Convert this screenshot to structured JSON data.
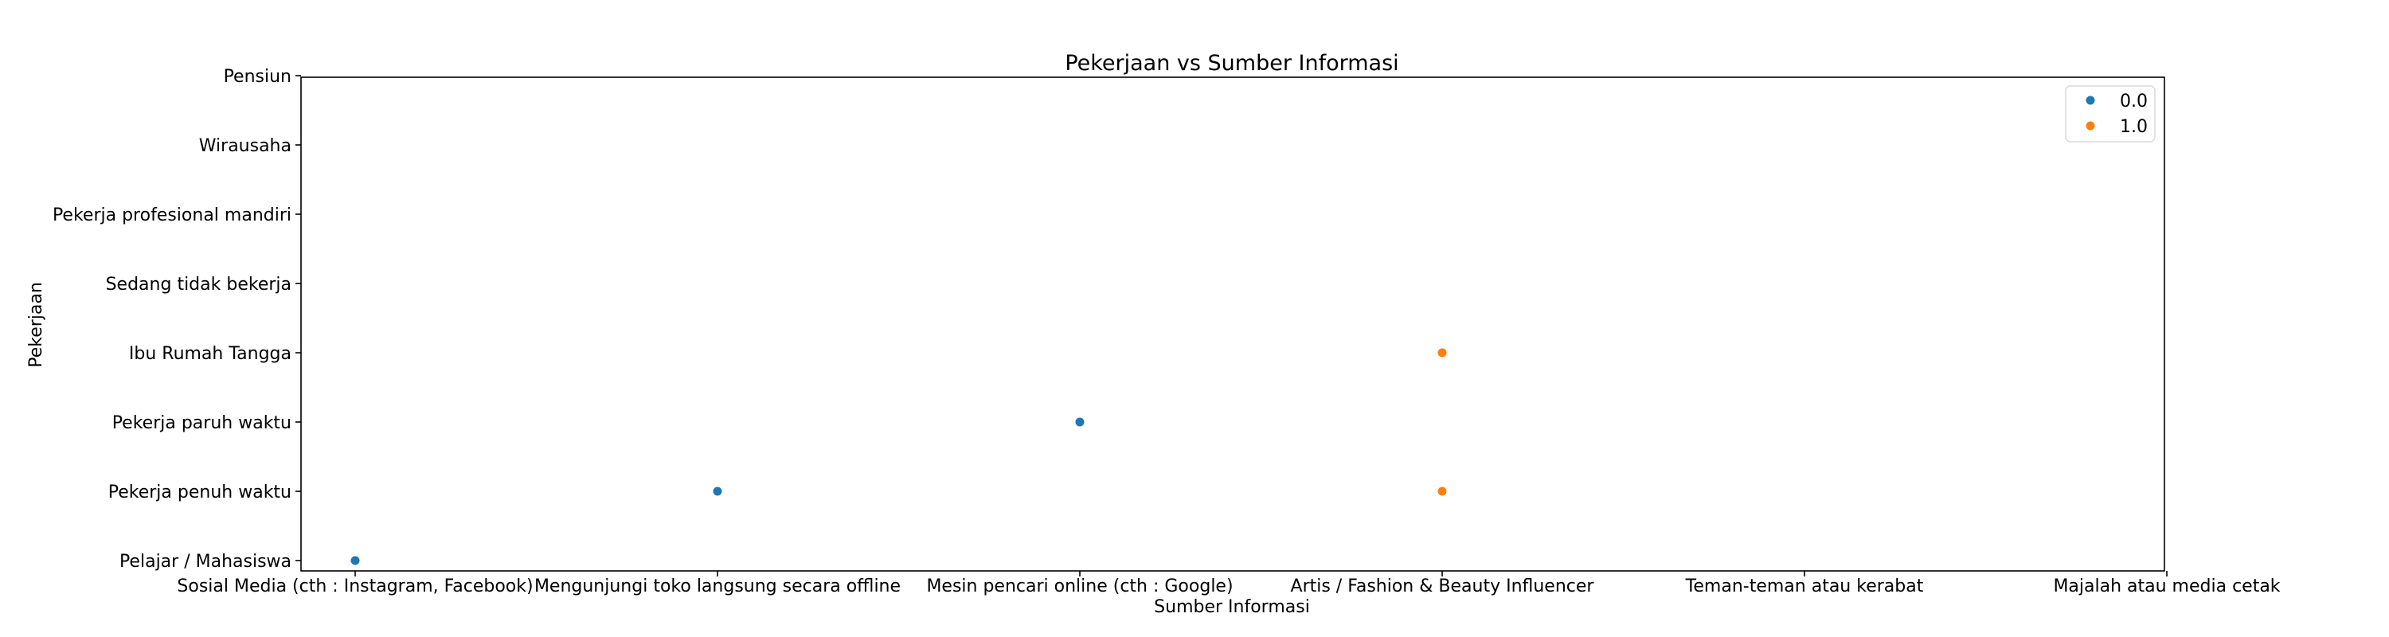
{
  "chart_data": {
    "type": "scatter",
    "title": "Pekerjaan vs Sumber Informasi",
    "xlabel": "Sumber Informasi",
    "ylabel": "Pekerjaan",
    "x_categories": [
      "Sosial Media (cth : Instagram, Facebook)",
      "Mengunjungi toko langsung secara offline",
      "Mesin pencari online (cth : Google)",
      "Artis / Fashion & Beauty Influencer",
      "Teman-teman atau kerabat",
      "Majalah atau media cetak"
    ],
    "y_categories": [
      "Pelajar / Mahasiswa",
      "Pekerja penuh waktu",
      "Pekerja paruh waktu",
      "Ibu Rumah Tangga",
      "Sedang tidak bekerja",
      "Pekerja profesional mandiri",
      "Wirausaha",
      "Pensiun"
    ],
    "grid": false,
    "legend_position": "top-right",
    "series": [
      {
        "name": "0.0",
        "color": "#1f77b4",
        "points": [
          {
            "x": "Sosial Media (cth : Instagram, Facebook)",
            "y": "Pelajar / Mahasiswa"
          },
          {
            "x": "Mengunjungi toko langsung secara offline",
            "y": "Pekerja penuh waktu"
          },
          {
            "x": "Mesin pencari online (cth : Google)",
            "y": "Pekerja paruh waktu"
          }
        ]
      },
      {
        "name": "1.0",
        "color": "#ff7f0e",
        "points": [
          {
            "x": "Artis / Fashion & Beauty Influencer",
            "y": "Ibu Rumah Tangga"
          },
          {
            "x": "Artis / Fashion & Beauty Influencer",
            "y": "Pekerja penuh waktu"
          }
        ]
      }
    ]
  }
}
